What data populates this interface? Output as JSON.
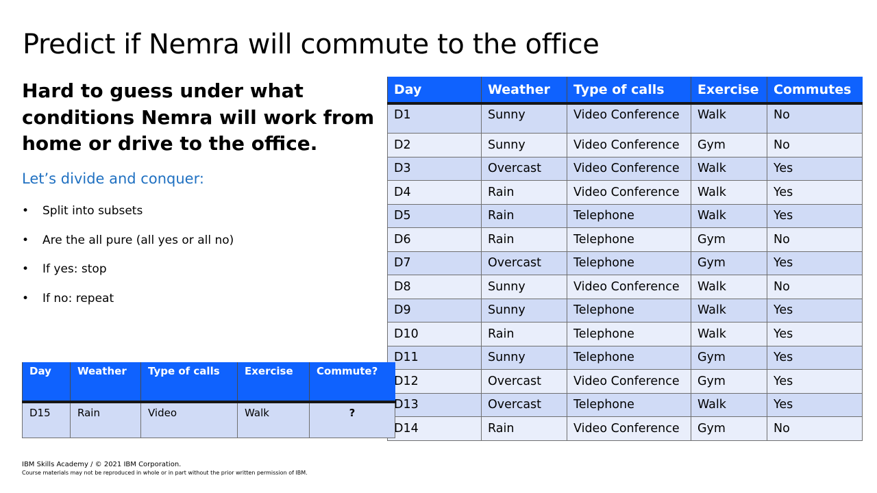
{
  "title": "Predict if Nemra will commute to the office",
  "subheading": "Hard to guess under what conditions Nemra will work from home or drive to the office.",
  "divide_text": "Let’s divide and conquer:",
  "bullets": [
    "Split into subsets",
    "Are the all pure (all yes or all no)",
    "If yes: stop",
    "If no: repeat"
  ],
  "main_table": {
    "headers": [
      "Day",
      "Weather",
      "Type of calls",
      "Exercise",
      "Commutes"
    ],
    "rows": [
      [
        "D1",
        "Sunny",
        "Video Conference",
        "Walk",
        "No"
      ],
      [
        "D2",
        "Sunny",
        "Video Conference",
        "Gym",
        "No"
      ],
      [
        "D3",
        "Overcast",
        "Video Conference",
        "Walk",
        "Yes"
      ],
      [
        "D4",
        "Rain",
        "Video Conference",
        "Walk",
        "Yes"
      ],
      [
        "D5",
        "Rain",
        "Telephone",
        "Walk",
        "Yes"
      ],
      [
        "D6",
        "Rain",
        "Telephone",
        "Gym",
        "No"
      ],
      [
        "D7",
        "Overcast",
        "Telephone",
        "Gym",
        "Yes"
      ],
      [
        "D8",
        "Sunny",
        "Video Conference",
        "Walk",
        "No"
      ],
      [
        "D9",
        "Sunny",
        "Telephone",
        "Walk",
        "Yes"
      ],
      [
        "D10",
        "Rain",
        "Telephone",
        "Walk",
        "Yes"
      ],
      [
        "D11",
        "Sunny",
        "Telephone",
        "Gym",
        "Yes"
      ],
      [
        "D12",
        "Overcast",
        "Video Conference",
        "Gym",
        "Yes"
      ],
      [
        "D13",
        "Overcast",
        "Telephone",
        "Walk",
        "Yes"
      ],
      [
        "D14",
        "Rain",
        "Video Conference",
        "Gym",
        "No"
      ]
    ]
  },
  "query_table": {
    "headers": [
      "Day",
      "Weather",
      "Type of calls",
      "Exercise",
      "Commute?"
    ],
    "row": [
      "D15",
      "Rain",
      "Video",
      "Walk",
      "?"
    ]
  },
  "footer": {
    "line1": "IBM Skills Academy / © 2021 IBM Corporation.",
    "line2": "Course materials may not be reproduced in whole or in part without the prior written permission of IBM."
  },
  "colors": {
    "header_blue": "#0f62fe",
    "row_dark": "#d0dbf6",
    "row_light": "#e9eefb",
    "accent_text": "#1f70c1"
  }
}
